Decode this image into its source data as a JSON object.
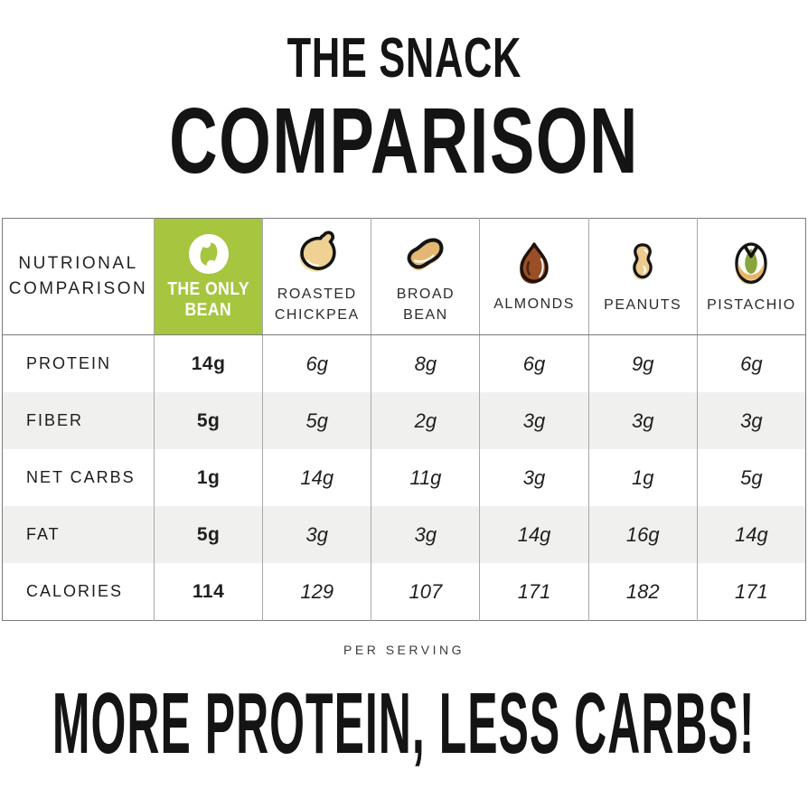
{
  "title": {
    "line1": "THE SNACK",
    "line2": "COMPARISON"
  },
  "table": {
    "corner": {
      "line1": "NUTRIONAL",
      "line2": "COMPARISON"
    },
    "products": [
      {
        "name": "The Only Bean",
        "lines": [
          "THE ONLY",
          "BEAN"
        ],
        "icon": "only-bean-logo",
        "highlight": true
      },
      {
        "name": "Roasted Chickpea",
        "lines": [
          "ROASTED",
          "CHICKPEA"
        ],
        "icon": "chickpea",
        "highlight": false
      },
      {
        "name": "Broad Bean",
        "lines": [
          "BROAD",
          "BEAN"
        ],
        "icon": "broad-bean",
        "highlight": false
      },
      {
        "name": "Almonds",
        "lines": [
          "ALMONDS"
        ],
        "icon": "almond",
        "highlight": false
      },
      {
        "name": "Peanuts",
        "lines": [
          "PEANUTS"
        ],
        "icon": "peanut",
        "highlight": false
      },
      {
        "name": "Pistachio",
        "lines": [
          "PISTACHIO"
        ],
        "icon": "pistachio",
        "highlight": false
      }
    ],
    "rows": [
      {
        "label": "PROTEIN",
        "values": [
          "14g",
          "6g",
          "8g",
          "6g",
          "9g",
          "6g"
        ]
      },
      {
        "label": "FIBER",
        "values": [
          "5g",
          "5g",
          "2g",
          "3g",
          "3g",
          "3g"
        ]
      },
      {
        "label": "NET CARBS",
        "values": [
          "1g",
          "14g",
          "11g",
          "3g",
          "1g",
          "5g"
        ]
      },
      {
        "label": "FAT",
        "values": [
          "5g",
          "3g",
          "3g",
          "14g",
          "16g",
          "14g"
        ]
      },
      {
        "label": "CALORIES",
        "values": [
          "114",
          "129",
          "107",
          "171",
          "182",
          "171"
        ]
      }
    ],
    "footnote": "PER SERVING"
  },
  "headline": "MORE PROTEIN, LESS CARBS!",
  "colors": {
    "brand_green": "#a5c63e",
    "row_alt": "#f0f0ee",
    "chickpea_tan": "#eed193",
    "bean_tan": "#e3b671",
    "almond_brown": "#9b4f27",
    "peanut_tan": "#eeca8e",
    "pistachio_green": "#88a43d",
    "pistachio_shell": "#e9b465"
  },
  "chart_data": {
    "type": "table",
    "title": "THE SNACK COMPARISON",
    "columns": [
      "NUTRIONAL COMPARISON",
      "THE ONLY BEAN",
      "ROASTED CHICKPEA",
      "BROAD BEAN",
      "ALMONDS",
      "PEANUTS",
      "PISTACHIO"
    ],
    "rows": [
      [
        "PROTEIN",
        "14g",
        "6g",
        "8g",
        "6g",
        "9g",
        "6g"
      ],
      [
        "FIBER",
        "5g",
        "5g",
        "2g",
        "3g",
        "3g",
        "3g"
      ],
      [
        "NET CARBS",
        "1g",
        "14g",
        "11g",
        "3g",
        "1g",
        "5g"
      ],
      [
        "FAT",
        "5g",
        "3g",
        "3g",
        "14g",
        "16g",
        "14g"
      ],
      [
        "CALORIES",
        "114",
        "129",
        "107",
        "171",
        "182",
        "171"
      ]
    ],
    "note": "PER SERVING",
    "annotation": "MORE PROTEIN, LESS CARBS!"
  }
}
